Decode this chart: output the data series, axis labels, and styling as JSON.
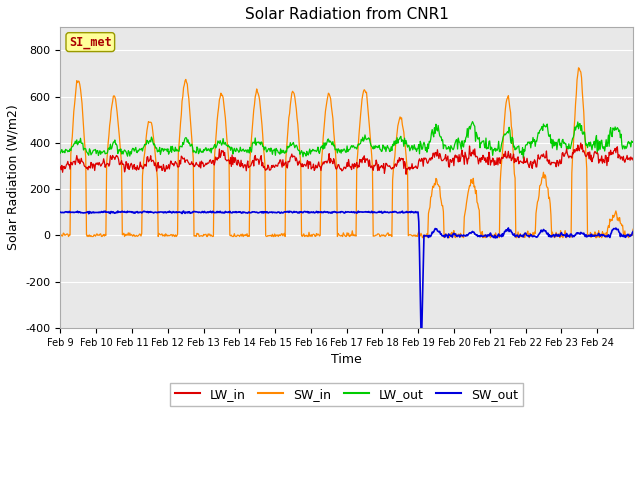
{
  "title": "Solar Radiation from CNR1",
  "xlabel": "Time",
  "ylabel": "Solar Radiation (W/m2)",
  "ylim": [
    -400,
    900
  ],
  "yticks": [
    -400,
    -200,
    0,
    200,
    400,
    600,
    800
  ],
  "date_labels": [
    "Feb 9",
    "Feb 10",
    "Feb 11",
    "Feb 12",
    "Feb 13",
    "Feb 14",
    "Feb 15",
    "Feb 16",
    "Feb 17",
    "Feb 18",
    "Feb 19",
    "Feb 20",
    "Feb 21",
    "Feb 22",
    "Feb 23",
    "Feb 24"
  ],
  "colors": {
    "LW_in": "#dd0000",
    "SW_in": "#ff8800",
    "LW_out": "#00cc00",
    "SW_out": "#0000dd"
  },
  "plot_bg": "#e8e8e8",
  "fig_bg": "#ffffff",
  "grid_color": "#ffffff",
  "annotation_text": "SI_met",
  "annotation_color": "#aa0000",
  "annotation_bg": "#ffff99",
  "annotation_border": "#999900"
}
